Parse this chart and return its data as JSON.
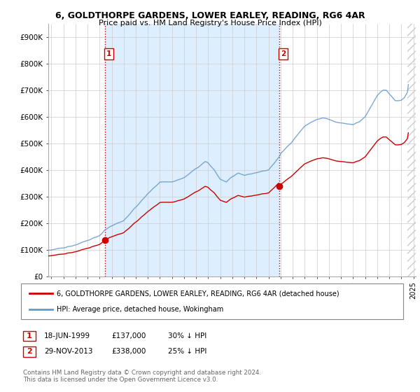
{
  "title": "6, GOLDTHORPE GARDENS, LOWER EARLEY, READING, RG6 4AR",
  "subtitle": "Price paid vs. HM Land Registry's House Price Index (HPI)",
  "ylim": [
    0,
    950000
  ],
  "yticks": [
    0,
    100000,
    200000,
    300000,
    400000,
    500000,
    600000,
    700000,
    800000,
    900000
  ],
  "ytick_labels": [
    "£0",
    "£100K",
    "£200K",
    "£300K",
    "£400K",
    "£500K",
    "£600K",
    "£700K",
    "£800K",
    "£900K"
  ],
  "hpi_color": "#6699cc",
  "price_color": "#cc0000",
  "vline_color": "#cc0000",
  "annotation_box_color": "#cc0000",
  "sale1_date": 1999.46,
  "sale1_price": 137000,
  "sale1_label": "1",
  "sale2_date": 2013.91,
  "sale2_price": 338000,
  "sale2_label": "2",
  "legend_line1": "6, GOLDTHORPE GARDENS, LOWER EARLEY, READING, RG6 4AR (detached house)",
  "legend_line2": "HPI: Average price, detached house, Wokingham",
  "sale1_ann": "18-JUN-1999",
  "sale1_price_str": "£137,000",
  "sale1_pct": "30% ↓ HPI",
  "sale2_ann": "29-NOV-2013",
  "sale2_price_str": "£338,000",
  "sale2_pct": "25% ↓ HPI",
  "footer": "Contains HM Land Registry data © Crown copyright and database right 2024.\nThis data is licensed under the Open Government Licence v3.0.",
  "bg_color": "#ffffff",
  "grid_color": "#cccccc",
  "shade_color": "#ddeeff",
  "hatch_color": "#cccccc"
}
